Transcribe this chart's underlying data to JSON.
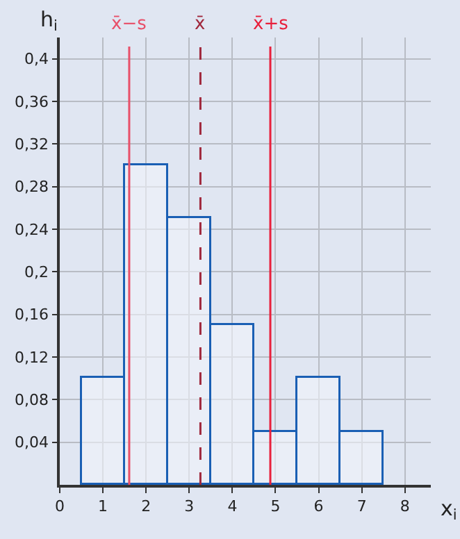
{
  "chart_data": {
    "type": "histogram",
    "xlabel": "x$_{i}$",
    "ylabel": "h$_{i}$",
    "bins": [
      0.5,
      1.5,
      2.5,
      3.5,
      4.5,
      5.5,
      6.5,
      7.5
    ],
    "values": [
      0.1,
      0.3,
      0.25,
      0.15,
      0.05,
      0.1,
      0.05
    ],
    "color": "#1a5fb4",
    "xlim": [
      0,
      8.6
    ],
    "xticks": [
      0,
      1,
      2,
      3,
      4,
      5,
      6,
      7,
      8
    ],
    "ylim": [
      0,
      0.42
    ],
    "yticks": [
      {
        "value": 0.04,
        "label": "0,04"
      },
      {
        "value": 0.08,
        "label": "0,08"
      },
      {
        "value": 0.12,
        "label": "0,12"
      },
      {
        "value": 0.16,
        "label": "0,16"
      },
      {
        "value": 0.2,
        "label": "0,2"
      },
      {
        "value": 0.24,
        "label": "0,24"
      },
      {
        "value": 0.28,
        "label": "0,28"
      },
      {
        "value": 0.32,
        "label": "0,32"
      },
      {
        "value": 0.36,
        "label": "0,36"
      },
      {
        "value": 0.4,
        "label": "0,4"
      }
    ],
    "ref_lines": [
      {
        "axis": "x",
        "value": 1.61,
        "label": "x̄−s",
        "color": "#e8506a",
        "line_style": "solid"
      },
      {
        "axis": "x",
        "value": 3.26,
        "label": "x̄",
        "color": "#a0283c",
        "line_style": "dashed"
      },
      {
        "axis": "x",
        "value": 4.88,
        "label": "x̄+s",
        "color": "#e8203c",
        "line_style": "solid"
      }
    ],
    "grid": true
  }
}
